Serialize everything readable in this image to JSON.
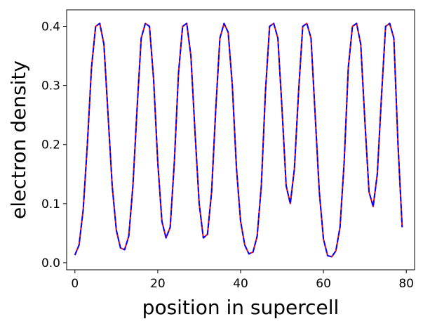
{
  "chart_data": {
    "type": "line",
    "title": "",
    "xlabel": "position in supercell",
    "ylabel": "electron density",
    "xlim": [
      -2,
      82
    ],
    "ylim": [
      -0.012,
      0.428
    ],
    "xticks": [
      0,
      20,
      40,
      60,
      80
    ],
    "xtick_labels": [
      "0",
      "20",
      "40",
      "60",
      "80"
    ],
    "yticks": [
      0.0,
      0.1,
      0.2,
      0.3,
      0.4
    ],
    "ytick_labels": [
      "0.0",
      "0.1",
      "0.2",
      "0.3",
      "0.4"
    ],
    "grid": false,
    "legend": "none",
    "x": [
      0,
      1,
      2,
      3,
      4,
      5,
      6,
      7,
      8,
      9,
      10,
      11,
      12,
      13,
      14,
      15,
      16,
      17,
      18,
      19,
      20,
      21,
      22,
      23,
      24,
      25,
      26,
      27,
      28,
      29,
      30,
      31,
      32,
      33,
      34,
      35,
      36,
      37,
      38,
      39,
      40,
      41,
      42,
      43,
      44,
      45,
      46,
      47,
      48,
      49,
      50,
      51,
      52,
      53,
      54,
      55,
      56,
      57,
      58,
      59,
      60,
      61,
      62,
      63,
      64,
      65,
      66,
      67,
      68,
      69,
      70,
      71,
      72,
      73,
      74,
      75,
      76,
      77,
      78,
      79
    ],
    "series": [
      {
        "color": "#ff0000",
        "style": "solid",
        "values": [
          0.013,
          0.03,
          0.09,
          0.2,
          0.33,
          0.4,
          0.405,
          0.37,
          0.25,
          0.13,
          0.055,
          0.025,
          0.022,
          0.045,
          0.13,
          0.26,
          0.38,
          0.405,
          0.4,
          0.31,
          0.17,
          0.07,
          0.042,
          0.06,
          0.17,
          0.32,
          0.4,
          0.405,
          0.35,
          0.22,
          0.1,
          0.042,
          0.048,
          0.12,
          0.26,
          0.38,
          0.405,
          0.39,
          0.3,
          0.16,
          0.07,
          0.03,
          0.015,
          0.018,
          0.045,
          0.13,
          0.29,
          0.4,
          0.405,
          0.38,
          0.26,
          0.13,
          0.1,
          0.16,
          0.29,
          0.4,
          0.405,
          0.38,
          0.25,
          0.12,
          0.04,
          0.012,
          0.01,
          0.02,
          0.06,
          0.17,
          0.33,
          0.4,
          0.405,
          0.37,
          0.24,
          0.12,
          0.095,
          0.15,
          0.28,
          0.4,
          0.405,
          0.38,
          0.2,
          0.06
        ]
      },
      {
        "color": "#0000ff",
        "style": "dashed",
        "values": [
          0.013,
          0.03,
          0.09,
          0.2,
          0.33,
          0.4,
          0.405,
          0.37,
          0.25,
          0.13,
          0.055,
          0.025,
          0.022,
          0.045,
          0.13,
          0.26,
          0.38,
          0.405,
          0.4,
          0.31,
          0.17,
          0.07,
          0.042,
          0.06,
          0.17,
          0.32,
          0.4,
          0.405,
          0.35,
          0.22,
          0.1,
          0.042,
          0.048,
          0.12,
          0.26,
          0.38,
          0.405,
          0.39,
          0.3,
          0.16,
          0.07,
          0.03,
          0.015,
          0.018,
          0.045,
          0.13,
          0.29,
          0.4,
          0.405,
          0.38,
          0.26,
          0.13,
          0.1,
          0.16,
          0.29,
          0.4,
          0.405,
          0.38,
          0.25,
          0.12,
          0.04,
          0.012,
          0.01,
          0.02,
          0.06,
          0.17,
          0.33,
          0.4,
          0.405,
          0.37,
          0.24,
          0.12,
          0.095,
          0.15,
          0.28,
          0.4,
          0.405,
          0.38,
          0.2,
          0.06
        ]
      }
    ]
  }
}
